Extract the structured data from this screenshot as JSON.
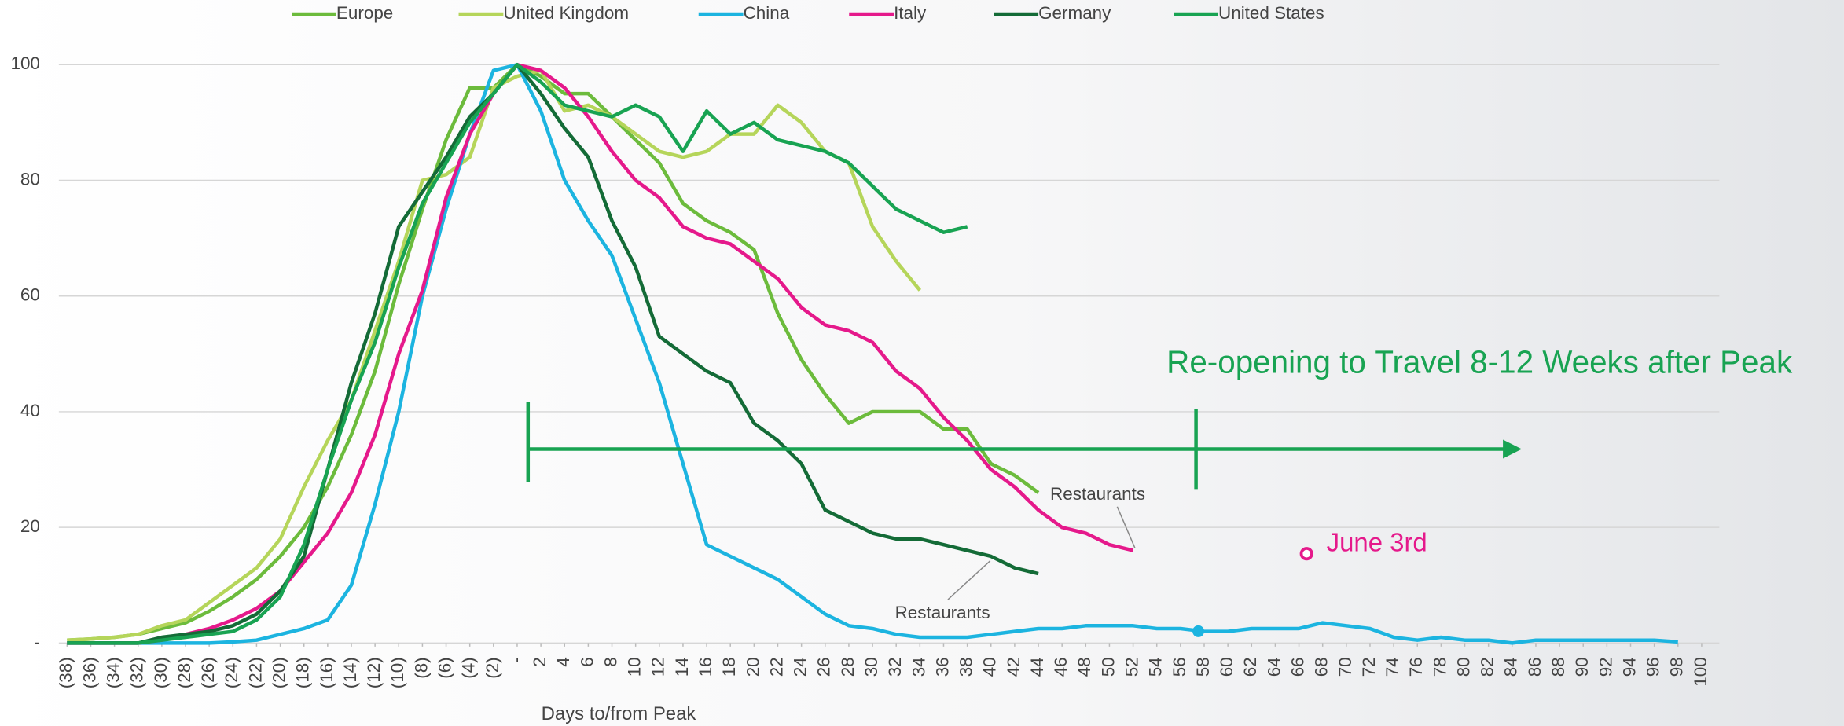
{
  "chart_data": {
    "type": "line",
    "x_label": "Days to/from Peak",
    "x": [
      -38,
      -36,
      -34,
      -32,
      -30,
      -28,
      -26,
      -24,
      -22,
      -20,
      -18,
      -16,
      -14,
      -12,
      -10,
      -8,
      -6,
      -4,
      -2,
      0,
      2,
      4,
      6,
      8,
      10,
      12,
      14,
      16,
      18,
      20,
      22,
      24,
      26,
      28,
      30,
      32,
      34,
      36,
      38,
      40,
      42,
      44,
      46,
      48,
      50,
      52,
      54,
      56,
      58,
      60,
      62,
      64,
      66,
      68,
      70,
      72,
      74,
      76,
      78,
      80,
      82,
      84,
      86,
      88,
      90,
      92,
      94,
      96,
      98,
      100
    ],
    "xlim": [
      -38,
      100
    ],
    "xticks": [
      {
        "value": -38,
        "label": "(38)"
      },
      {
        "value": -36,
        "label": "(36)"
      },
      {
        "value": -34,
        "label": "(34)"
      },
      {
        "value": -32,
        "label": "(32)"
      },
      {
        "value": -30,
        "label": "(30)"
      },
      {
        "value": -28,
        "label": "(28)"
      },
      {
        "value": -26,
        "label": "(26)"
      },
      {
        "value": -24,
        "label": "(24)"
      },
      {
        "value": -22,
        "label": "(22)"
      },
      {
        "value": -20,
        "label": "(20)"
      },
      {
        "value": -18,
        "label": "(18)"
      },
      {
        "value": -16,
        "label": "(16)"
      },
      {
        "value": -14,
        "label": "(14)"
      },
      {
        "value": -12,
        "label": "(12)"
      },
      {
        "value": -10,
        "label": "(10)"
      },
      {
        "value": -8,
        "label": "(8)"
      },
      {
        "value": -6,
        "label": "(6)"
      },
      {
        "value": -4,
        "label": "(4)"
      },
      {
        "value": -2,
        "label": "(2)"
      },
      {
        "value": 0,
        "label": "-"
      },
      2,
      4,
      6,
      8,
      10,
      12,
      14,
      16,
      18,
      20,
      22,
      24,
      26,
      28,
      30,
      32,
      34,
      36,
      38,
      40,
      42,
      44,
      46,
      48,
      50,
      52,
      54,
      56,
      58,
      60,
      62,
      64,
      66,
      68,
      70,
      72,
      74,
      76,
      78,
      80,
      82,
      84,
      86,
      88,
      90,
      92,
      94,
      96,
      98,
      100
    ],
    "ylim": [
      0,
      100
    ],
    "yticks": [
      {
        "value": 0,
        "label": "-"
      },
      20,
      40,
      60,
      80,
      100
    ],
    "grid": true,
    "series": [
      {
        "name": "Europe",
        "color": "#6cbb3c",
        "values": [
          0.5,
          0.7,
          1,
          1.5,
          2.5,
          3.5,
          5.5,
          8,
          11,
          15,
          20,
          27,
          36,
          47,
          62,
          75,
          87,
          96,
          96,
          100,
          98,
          95,
          95,
          91,
          87,
          83,
          76,
          73,
          71,
          68,
          57,
          49,
          43,
          38,
          40,
          40,
          40,
          37,
          37,
          31,
          29,
          26,
          null,
          null,
          null,
          null,
          null,
          null,
          null,
          null,
          null,
          null,
          null,
          null,
          null,
          null,
          null,
          null,
          null,
          null,
          null,
          null,
          null,
          null,
          null,
          null,
          null,
          null,
          null,
          null
        ]
      },
      {
        "name": "United Kingdom",
        "color": "#b5d55a",
        "values": [
          0.5,
          0.7,
          1,
          1.5,
          3,
          4,
          7,
          10,
          13,
          18,
          27,
          35,
          42,
          54,
          66,
          80,
          81,
          84,
          96,
          98,
          99,
          92,
          93,
          91,
          88,
          85,
          84,
          85,
          88,
          88,
          93,
          90,
          85,
          83,
          72,
          66,
          61,
          null,
          null,
          null,
          null,
          null,
          null,
          null,
          null,
          null,
          null,
          null,
          null,
          null,
          null,
          null,
          null,
          null,
          null,
          null,
          null,
          null,
          null,
          null,
          null,
          null,
          null,
          null,
          null,
          null,
          null,
          null,
          null,
          null
        ]
      },
      {
        "name": "China",
        "color": "#1cb4e0",
        "values": [
          0,
          0,
          0,
          0,
          0,
          0,
          0,
          0.2,
          0.5,
          1.5,
          2.5,
          4,
          10,
          24,
          40,
          60,
          75,
          88,
          99,
          100,
          92,
          80,
          73,
          67,
          56,
          45,
          31,
          17,
          15,
          13,
          11,
          8,
          5,
          3,
          2.5,
          1.5,
          1,
          1,
          1,
          1.5,
          2,
          2.5,
          2.5,
          3,
          3,
          3,
          2.5,
          2.5,
          2,
          2,
          2.5,
          2.5,
          2.5,
          3.5,
          3,
          2.5,
          1,
          0.5,
          1,
          0.5,
          0.5,
          0,
          0.5,
          0.5,
          0.5,
          0.5,
          0.5,
          0.5,
          0.2,
          null
        ]
      },
      {
        "name": "Italy",
        "color": "#e5198b",
        "values": [
          0,
          0,
          0,
          0,
          0.5,
          1.5,
          2.5,
          4,
          6,
          9,
          14,
          19,
          26,
          36,
          50,
          61,
          77,
          88,
          95,
          100,
          99,
          96,
          91,
          85,
          80,
          77,
          72,
          70,
          69,
          66,
          63,
          58,
          55,
          54,
          52,
          47,
          44,
          39,
          35,
          30,
          27,
          23,
          20,
          19,
          17,
          16,
          null,
          null,
          null,
          null,
          null,
          null,
          null,
          null,
          null,
          null,
          null,
          null,
          null,
          null,
          null,
          null,
          null,
          null,
          null,
          null,
          null,
          null,
          null,
          null
        ]
      },
      {
        "name": "Germany",
        "color": "#146b37",
        "values": [
          0,
          0,
          0,
          0,
          1,
          1.5,
          2,
          3,
          5,
          9,
          15,
          30,
          45,
          57,
          72,
          78,
          84,
          91,
          95,
          100,
          95,
          89,
          84,
          73,
          65,
          53,
          50,
          47,
          45,
          38,
          35,
          31,
          23,
          21,
          19,
          18,
          18,
          17,
          16,
          15,
          13,
          12,
          null,
          null,
          null,
          null,
          null,
          null,
          null,
          null,
          null,
          null,
          null,
          null,
          null,
          null,
          null,
          null,
          null,
          null,
          null,
          null,
          null,
          null,
          null,
          null,
          null,
          null,
          null,
          null
        ]
      },
      {
        "name": "United States",
        "color": "#18a352",
        "values": [
          0,
          0,
          0,
          0,
          0.5,
          1,
          1.5,
          2,
          4,
          8,
          17,
          30,
          42,
          52,
          65,
          76,
          83,
          90,
          95,
          100,
          97,
          93,
          92,
          91,
          93,
          91,
          85,
          92,
          88,
          90,
          87,
          86,
          85,
          83,
          79,
          75,
          73,
          71,
          72,
          null,
          null,
          null,
          null,
          null,
          null,
          null,
          null,
          null,
          null,
          null,
          null,
          null,
          null,
          null,
          null,
          null,
          null,
          null,
          null,
          null,
          null,
          null,
          null,
          null,
          null,
          null,
          null,
          null,
          null,
          null
        ]
      }
    ],
    "annotations": [
      "Re-opening to Travel 8-12 Weeks after Peak",
      "Restaurants",
      "Restaurants",
      "June 3rd"
    ]
  }
}
